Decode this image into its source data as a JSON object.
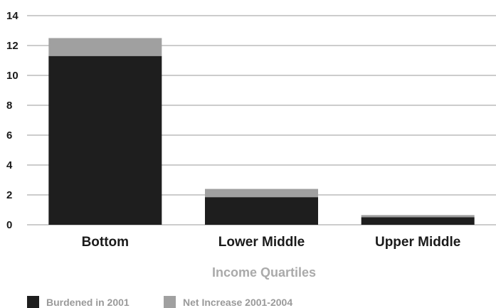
{
  "colors": {
    "burdened": "#1e1e1e",
    "increase": "#a0a0a0",
    "grid": "#9a9a9a"
  },
  "chart_data": {
    "type": "bar",
    "stacked": true,
    "categories": [
      "Bottom",
      "Lower Middle",
      "Upper Middle"
    ],
    "series": [
      {
        "name": "Burdened in 2001",
        "values": [
          11.3,
          1.85,
          0.5
        ]
      },
      {
        "name": "Net Increase 2001-2004",
        "values": [
          1.2,
          0.55,
          0.15
        ]
      }
    ],
    "xlabel": "Income Quartiles",
    "ylabel": "",
    "ylim": [
      0,
      14
    ],
    "yticks": [
      0,
      2,
      4,
      6,
      8,
      10,
      12,
      14
    ],
    "grid": true,
    "legend_position": "bottom-left"
  }
}
